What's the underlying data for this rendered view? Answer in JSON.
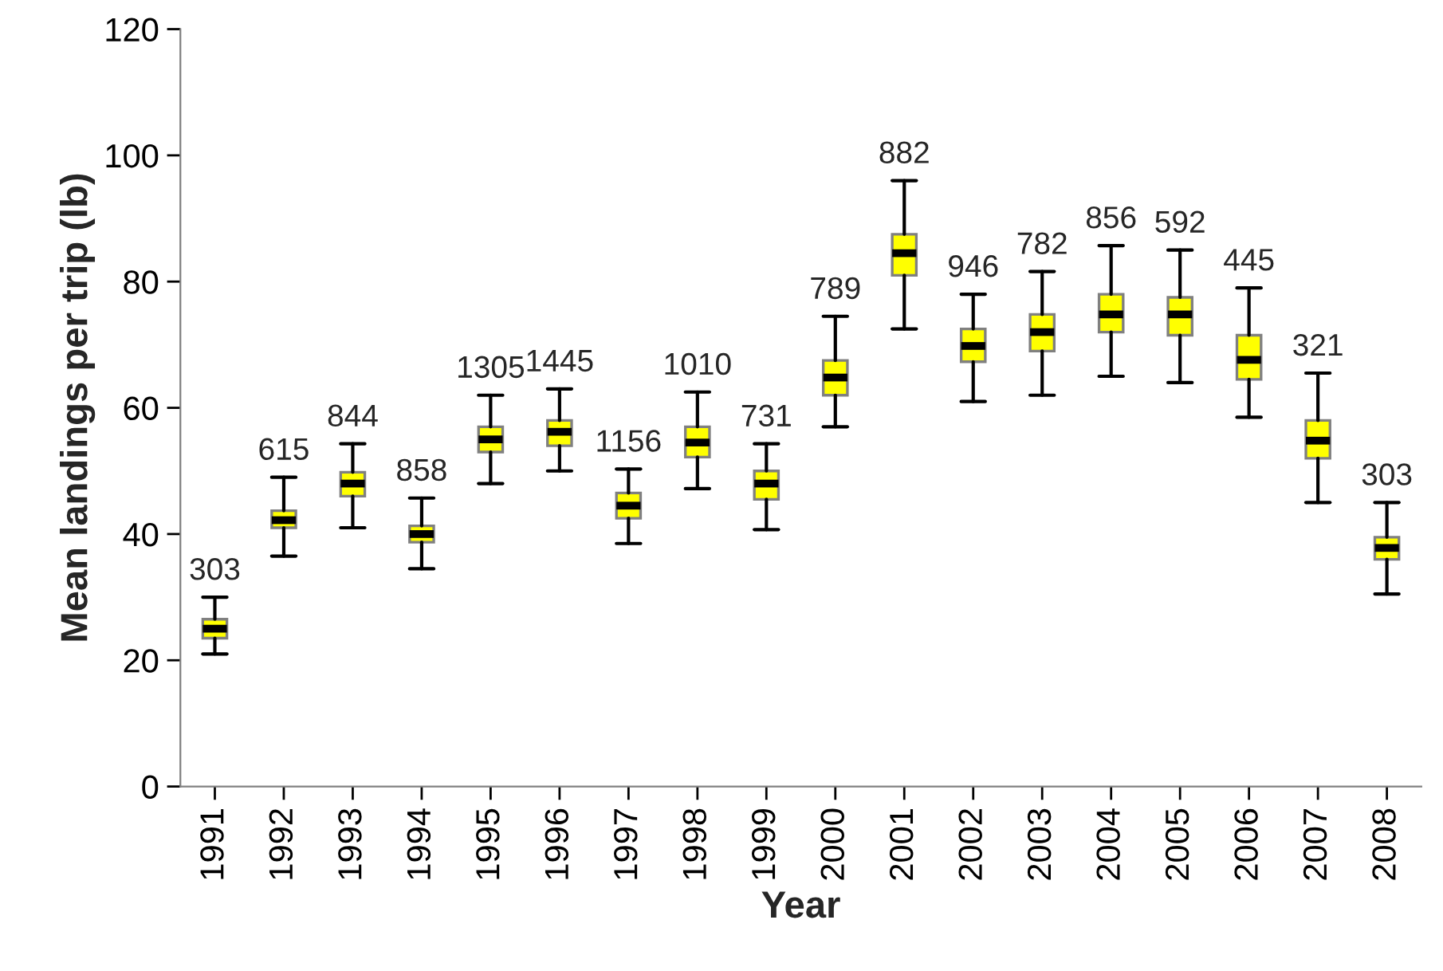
{
  "chart_data": {
    "type": "box",
    "xlabel": "Year",
    "ylabel": "Mean landings per trip (lb)",
    "categories": [
      "1991",
      "1992",
      "1993",
      "1994",
      "1995",
      "1996",
      "1997",
      "1998",
      "1999",
      "2000",
      "2001",
      "2002",
      "2003",
      "2004",
      "2005",
      "2006",
      "2007",
      "2008"
    ],
    "color": "#ffff00",
    "boxes": [
      {
        "low": 21,
        "q1": 23.5,
        "median": 25,
        "q3": 26.5,
        "high": 30
      },
      {
        "low": 36.5,
        "q1": 41,
        "median": 42.2,
        "q3": 43.7,
        "high": 49
      },
      {
        "low": 41,
        "q1": 46,
        "median": 48,
        "q3": 49.8,
        "high": 54.3
      },
      {
        "low": 34.5,
        "q1": 38.7,
        "median": 40,
        "q3": 41.3,
        "high": 45.7
      },
      {
        "low": 48,
        "q1": 53,
        "median": 55,
        "q3": 57,
        "high": 62
      },
      {
        "low": 50,
        "q1": 54,
        "median": 56.2,
        "q3": 58,
        "high": 63
      },
      {
        "low": 38.5,
        "q1": 42.5,
        "median": 44.5,
        "q3": 46.5,
        "high": 50.3
      },
      {
        "low": 47.2,
        "q1": 52.2,
        "median": 54.5,
        "q3": 57,
        "high": 62.5
      },
      {
        "low": 40.7,
        "q1": 45.5,
        "median": 48,
        "q3": 50,
        "high": 54.3
      },
      {
        "low": 57,
        "q1": 62,
        "median": 64.8,
        "q3": 67.5,
        "high": 74.5
      },
      {
        "low": 72.5,
        "q1": 81,
        "median": 84.5,
        "q3": 87.5,
        "high": 96
      },
      {
        "low": 61,
        "q1": 67.3,
        "median": 69.8,
        "q3": 72.5,
        "high": 78
      },
      {
        "low": 62,
        "q1": 69,
        "median": 72,
        "q3": 74.8,
        "high": 81.6
      },
      {
        "low": 65,
        "q1": 72,
        "median": 74.8,
        "q3": 78,
        "high": 85.7
      },
      {
        "low": 64,
        "q1": 71.5,
        "median": 74.8,
        "q3": 77.5,
        "high": 85
      },
      {
        "low": 58.5,
        "q1": 64.5,
        "median": 67.6,
        "q3": 71.5,
        "high": 79
      },
      {
        "low": 45,
        "q1": 52,
        "median": 54.8,
        "q3": 58,
        "high": 65.5
      },
      {
        "low": 30.5,
        "q1": 36,
        "median": 37.8,
        "q3": 39.5,
        "high": 45
      }
    ],
    "annotations": [
      {
        "text": "303",
        "x": "1991",
        "y": 30
      },
      {
        "text": "615",
        "x": "1992",
        "y": 49
      },
      {
        "text": "844",
        "x": "1993",
        "y": 54.3
      },
      {
        "text": "858",
        "x": "1994",
        "y": 45.7
      },
      {
        "text": "1305",
        "x": "1995",
        "y": 62
      },
      {
        "text": "1445",
        "x": "1996",
        "y": 63
      },
      {
        "text": "1156",
        "x": "1997",
        "y": 50.3
      },
      {
        "text": "1010",
        "x": "1998",
        "y": 62.5
      },
      {
        "text": "731",
        "x": "1999",
        "y": 54.3
      },
      {
        "text": "789",
        "x": "2000",
        "y": 74.5
      },
      {
        "text": "882",
        "x": "2001",
        "y": 96
      },
      {
        "text": "946",
        "x": "2002",
        "y": 78
      },
      {
        "text": "782",
        "x": "2003",
        "y": 81.6
      },
      {
        "text": "856",
        "x": "2004",
        "y": 85.7
      },
      {
        "text": "592",
        "x": "2005",
        "y": 85
      },
      {
        "text": "445",
        "x": "2006",
        "y": 79
      },
      {
        "text": "321",
        "x": "2007",
        "y": 65.5
      },
      {
        "text": "303",
        "x": "2008",
        "y": 45
      }
    ],
    "ylim": [
      0,
      120
    ],
    "yticks": [
      0,
      20,
      40,
      60,
      80,
      100,
      120
    ],
    "grid": false
  }
}
